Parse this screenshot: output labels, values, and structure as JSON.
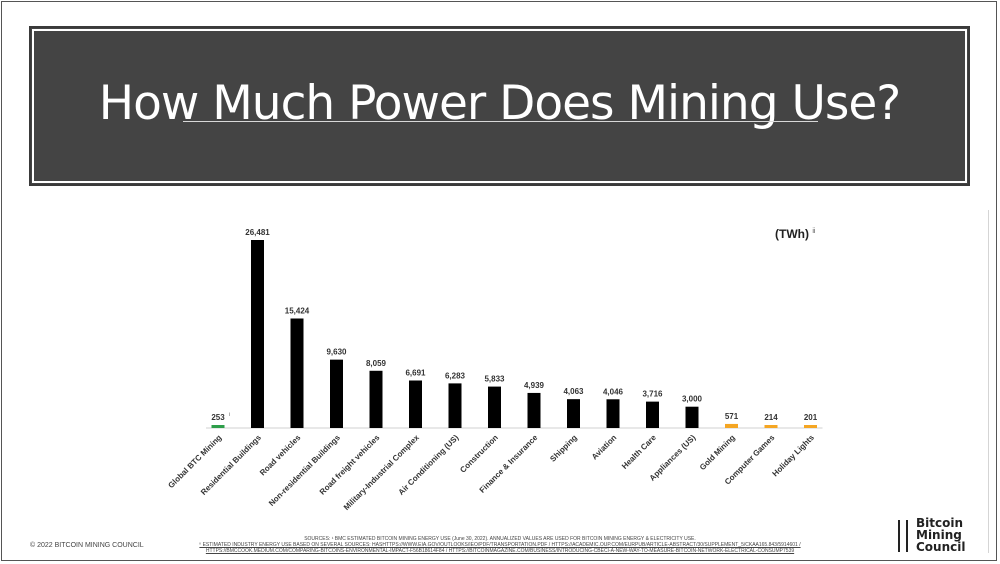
{
  "slide": {
    "title": "How Much Power Does Mining Use?",
    "unit_label": "(TWh)",
    "unit_footnote": "ii",
    "copyright": "© 2022 BITCOIN MINING COUNCIL",
    "sources_line1": "SOURCES: ¹ BMC ESTIMATED BITCOIN MINING ENERGY USE (June 30, 2022). ANNUALIZED VALUES ARE USED FOR BITCOIN MINING ENERGY & ELECTRICITY USE.",
    "sources_line2": "ⁱⁱ ESTIMATED INDUSTRY ENERGY USE BASED ON SEVERAL SOURCES: HASHTTPS://WWW.EIA.GOV/OUTLOOKS/IEO/PDF/TRANSPORTATION.PDF / HTTPS://ACADEMIC.OUP.COM/EURPUB/ARTICLE-ABSTRACT/30/SUPPLEMENT_5/CKAA165.843/5914601 / HTTPS://BMCCOOK.MEDIUM.COM/COMPARING-BITCOINS-ENVIRONMENTAL-IMPACT-F56B18614F84 / HTTPS://BITCOINMAGAZINE.COM/BUSINESS/INTRODUCING-CBECI-A-NEW-WAY-TO-MEASURE-BITCOIN-NETWORK-ELECTRICAL-CONSUMP7539",
    "logo_lines": [
      "Bitcoin",
      "Mining",
      "Council"
    ]
  },
  "chart_data": {
    "type": "bar",
    "title": "",
    "xlabel": "",
    "ylabel": "",
    "ylim": [
      0,
      26481
    ],
    "grid": false,
    "categories": [
      "Global BTC Mining",
      "Residential Buildings",
      "Road vehicles",
      "Non-residential Buildings",
      "Road freight vehicles",
      "Military-Industrial Complex",
      "Air Conditioning (US)",
      "Construction",
      "Finance & Insurance",
      "Shipping",
      "Aviation",
      "Health Care",
      "Appliances (US)",
      "Gold Mining",
      "Computer Games",
      "Holiday Lights"
    ],
    "values": [
      253,
      26481,
      15424,
      9630,
      8059,
      6691,
      6283,
      5833,
      4939,
      4063,
      4046,
      3716,
      3000,
      571,
      214,
      201
    ],
    "value_labels": [
      "253",
      "26,481",
      "15,424",
      "9,630",
      "8,059",
      "6,691",
      "6,283",
      "5,833",
      "4,939",
      "4,063",
      "4,046",
      "3,716",
      "3,000",
      "571",
      "214",
      "201"
    ],
    "first_label_footnote": "i",
    "colors": [
      "#2e9e4a",
      "#000000",
      "#000000",
      "#000000",
      "#000000",
      "#000000",
      "#000000",
      "#000000",
      "#000000",
      "#000000",
      "#000000",
      "#000000",
      "#000000",
      "#f5a623",
      "#f5a623",
      "#f5a623"
    ]
  }
}
